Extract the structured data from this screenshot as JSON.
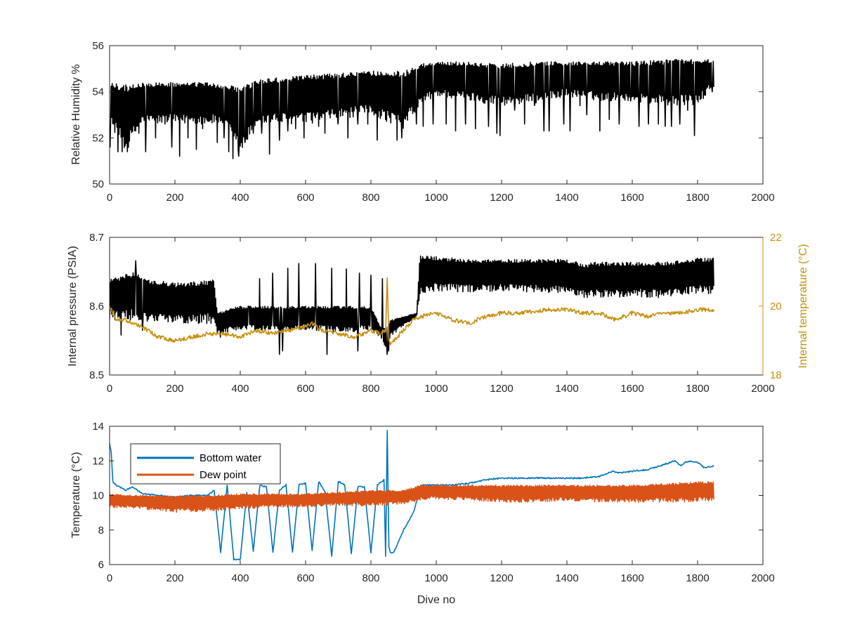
{
  "figure": {
    "background": "#ffffff"
  },
  "chart_data": [
    {
      "type": "line",
      "xlabel": "",
      "ylabel": "Relative Humidity %",
      "xlim": [
        0,
        2000
      ],
      "ylim": [
        50,
        56
      ],
      "xticks": [
        "0",
        "200",
        "400",
        "600",
        "800",
        "1000",
        "1200",
        "1400",
        "1600",
        "1800",
        "2000"
      ],
      "yticks": [
        "50",
        "52",
        "54",
        "56"
      ],
      "grid": false,
      "series": [
        {
          "color": "#000000",
          "envelope": {
            "x": [
              0,
              50,
              100,
              200,
              300,
              350,
              400,
              450,
              500,
              600,
              700,
              800,
              900,
              950,
              1000,
              1100,
              1200,
              1300,
              1400,
              1500,
              1600,
              1700,
              1800,
              1850
            ],
            "upper": [
              54.4,
              54.3,
              54.4,
              54.4,
              54.4,
              54.3,
              54.2,
              54.5,
              54.6,
              54.7,
              54.8,
              54.9,
              54.9,
              55.2,
              55.3,
              55.3,
              55.2,
              55.3,
              55.3,
              55.3,
              55.3,
              55.4,
              55.4,
              55.4
            ],
            "lower": [
              52.6,
              51.4,
              52.6,
              52.6,
              52.6,
              52.6,
              51.2,
              52.6,
              52.6,
              52.6,
              52.8,
              53.0,
              52.4,
              53.4,
              53.8,
              53.6,
              53.4,
              53.5,
              53.8,
              53.6,
              53.6,
              53.4,
              53.4,
              54.2
            ]
          },
          "dips": [
            [
              2,
              51.6
            ],
            [
              25,
              51.4
            ],
            [
              38,
              51.4
            ],
            [
              55,
              51.4
            ],
            [
              90,
              52.2
            ],
            [
              110,
              51.4
            ],
            [
              140,
              52.0
            ],
            [
              170,
              52.6
            ],
            [
              190,
              51.6
            ],
            [
              215,
              51.2
            ],
            [
              240,
              52.0
            ],
            [
              265,
              51.5
            ],
            [
              285,
              52.4
            ],
            [
              310,
              52.8
            ],
            [
              330,
              51.8
            ],
            [
              350,
              52.0
            ],
            [
              365,
              51.4
            ],
            [
              378,
              51.1
            ],
            [
              395,
              51.2
            ],
            [
              415,
              51.8
            ],
            [
              440,
              52.2
            ],
            [
              465,
              52.2
            ],
            [
              490,
              51.3
            ],
            [
              520,
              51.9
            ],
            [
              545,
              52.3
            ],
            [
              570,
              52.4
            ],
            [
              595,
              52.0
            ],
            [
              640,
              52.5
            ],
            [
              660,
              52.2
            ],
            [
              700,
              52.6
            ],
            [
              730,
              52.0
            ],
            [
              760,
              52.6
            ],
            [
              790,
              52.6
            ],
            [
              820,
              51.9
            ],
            [
              845,
              52.8
            ],
            [
              880,
              51.9
            ],
            [
              895,
              52.0
            ],
            [
              940,
              52.6
            ],
            [
              960,
              52.5
            ],
            [
              990,
              52.6
            ],
            [
              1030,
              52.6
            ],
            [
              1060,
              52.3
            ],
            [
              1090,
              52.6
            ],
            [
              1120,
              52.4
            ],
            [
              1160,
              52.5
            ],
            [
              1185,
              52.2
            ],
            [
              1195,
              52.1
            ],
            [
              1240,
              53.2
            ],
            [
              1270,
              52.6
            ],
            [
              1300,
              53.4
            ],
            [
              1330,
              52.3
            ],
            [
              1345,
              52.3
            ],
            [
              1390,
              52.6
            ],
            [
              1410,
              52.3
            ],
            [
              1440,
              53.4
            ],
            [
              1460,
              53.0
            ],
            [
              1500,
              52.3
            ],
            [
              1530,
              52.8
            ],
            [
              1560,
              52.6
            ],
            [
              1595,
              53.6
            ],
            [
              1620,
              52.5
            ],
            [
              1650,
              52.6
            ],
            [
              1680,
              52.6
            ],
            [
              1700,
              52.5
            ],
            [
              1720,
              52.5
            ],
            [
              1745,
              52.6
            ],
            [
              1770,
              53.2
            ],
            [
              1790,
              52.1
            ],
            [
              1830,
              54.2
            ],
            [
              1845,
              54.0
            ]
          ]
        }
      ]
    },
    {
      "type": "line",
      "xlabel": "",
      "ylabel": "Internal pressure (PSIA)",
      "y2label": "Internal temperature (°C)",
      "xlim": [
        0,
        2000
      ],
      "ylim": [
        8.5,
        8.7
      ],
      "y2lim": [
        18,
        22
      ],
      "xticks": [
        "0",
        "200",
        "400",
        "600",
        "800",
        "1000",
        "1200",
        "1400",
        "1600",
        "1800",
        "2000"
      ],
      "yticks": [
        "8.5",
        "8.6",
        "8.7"
      ],
      "y2ticks": [
        "18",
        "20",
        "22"
      ],
      "y2color": "#c5900f",
      "grid": false,
      "series": [
        {
          "axis": "left",
          "color": "#000000",
          "envelope": {
            "x": [
              0,
              80,
              100,
              200,
              320,
              330,
              360,
              400,
              500,
              600,
              700,
              800,
              830,
              850,
              860,
              900,
              940,
              950,
              1000,
              1100,
              1200,
              1300,
              1400,
              1460,
              1470,
              1500,
              1600,
              1700,
              1800,
              1850
            ],
            "upper": [
              8.64,
              8.65,
              8.64,
              8.634,
              8.638,
              8.59,
              8.596,
              8.6,
              8.6,
              8.6,
              8.6,
              8.6,
              8.57,
              8.57,
              8.58,
              8.585,
              8.59,
              8.674,
              8.672,
              8.668,
              8.668,
              8.668,
              8.668,
              8.66,
              8.664,
              8.664,
              8.664,
              8.664,
              8.67,
              8.67
            ],
            "lower": [
              8.58,
              8.58,
              8.578,
              8.574,
              8.575,
              8.56,
              8.562,
              8.566,
              8.564,
              8.566,
              8.562,
              8.564,
              8.555,
              8.535,
              8.555,
              8.572,
              8.583,
              8.615,
              8.622,
              8.62,
              8.622,
              8.62,
              8.62,
              8.612,
              8.612,
              8.612,
              8.614,
              8.612,
              8.618,
              8.618
            ]
          },
          "peaks": [
            [
              80,
              8.666
            ],
            [
              315,
              8.638
            ],
            [
              350,
              8.59
            ],
            [
              380,
              8.596
            ],
            [
              425,
              8.6
            ],
            [
              460,
              8.64
            ],
            [
              500,
              8.648
            ],
            [
              545,
              8.655
            ],
            [
              580,
              8.662
            ],
            [
              630,
              8.662
            ],
            [
              680,
              8.655
            ],
            [
              725,
              8.654
            ],
            [
              765,
              8.648
            ],
            [
              800,
              8.645
            ],
            [
              835,
              8.64
            ]
          ],
          "spikes_down": [
            [
              35,
              8.558
            ],
            [
              100,
              8.565
            ],
            [
              340,
              8.555
            ],
            [
              520,
              8.53
            ],
            [
              530,
              8.535
            ],
            [
              665,
              8.53
            ],
            [
              760,
              8.535
            ],
            [
              850,
              8.53
            ],
            [
              855,
              8.535
            ]
          ]
        },
        {
          "axis": "right",
          "color": "#c5900f",
          "x": [
            0,
            20,
            50,
            100,
            150,
            200,
            250,
            300,
            350,
            400,
            450,
            500,
            550,
            600,
            620,
            650,
            700,
            750,
            800,
            830,
            845,
            850,
            855,
            860,
            870,
            900,
            930,
            950,
            1000,
            1050,
            1100,
            1150,
            1200,
            1250,
            1300,
            1350,
            1400,
            1450,
            1500,
            1550,
            1600,
            1650,
            1700,
            1750,
            1800,
            1850
          ],
          "y": [
            20.0,
            19.6,
            19.6,
            19.4,
            19.1,
            19.0,
            19.1,
            19.2,
            19.2,
            19.1,
            19.3,
            19.2,
            19.3,
            19.4,
            19.5,
            19.3,
            19.2,
            19.1,
            19.3,
            19.2,
            19.3,
            20.8,
            19.0,
            18.9,
            19.0,
            19.3,
            19.6,
            19.7,
            19.8,
            19.6,
            19.5,
            19.7,
            19.8,
            19.8,
            19.85,
            19.9,
            19.9,
            19.8,
            19.8,
            19.6,
            19.8,
            19.7,
            19.8,
            19.8,
            19.9,
            19.9
          ]
        }
      ]
    },
    {
      "type": "line",
      "xlabel": "Dive no",
      "ylabel": "Temperature (°C)",
      "xlim": [
        0,
        2000
      ],
      "ylim": [
        6,
        14
      ],
      "xticks": [
        "0",
        "200",
        "400",
        "600",
        "800",
        "1000",
        "1200",
        "1400",
        "1600",
        "1800",
        "2000"
      ],
      "yticks": [
        "6",
        "8",
        "10",
        "12",
        "14"
      ],
      "grid": false,
      "legend": "top-left",
      "series": [
        {
          "name": "Bottom water",
          "color": "#0072bd",
          "x": [
            0,
            5,
            10,
            20,
            50,
            70,
            100,
            150,
            200,
            250,
            300,
            320,
            340,
            360,
            380,
            400,
            420,
            440,
            460,
            480,
            500,
            520,
            540,
            560,
            580,
            600,
            620,
            640,
            660,
            680,
            700,
            720,
            740,
            760,
            780,
            800,
            820,
            840,
            845,
            850,
            855,
            860,
            870,
            900,
            930,
            950,
            960,
            1000,
            1050,
            1100,
            1150,
            1200,
            1250,
            1300,
            1350,
            1400,
            1450,
            1500,
            1540,
            1560,
            1600,
            1650,
            1700,
            1730,
            1750,
            1760,
            1780,
            1800,
            1820,
            1850
          ],
          "y": [
            13.0,
            12.5,
            10.8,
            10.6,
            10.3,
            10.5,
            10.1,
            10.0,
            9.9,
            10.0,
            10.0,
            10.3,
            6.7,
            10.6,
            6.3,
            6.3,
            10.2,
            6.8,
            10.6,
            10.5,
            6.7,
            10.3,
            10.6,
            6.7,
            10.6,
            10.7,
            6.8,
            10.8,
            10.2,
            6.5,
            10.8,
            10.6,
            6.6,
            10.5,
            10.5,
            6.7,
            10.6,
            10.9,
            6.5,
            13.8,
            7.0,
            6.7,
            6.7,
            8.0,
            9.0,
            10.3,
            10.6,
            10.6,
            10.6,
            10.7,
            10.9,
            11.0,
            11.0,
            11.0,
            11.0,
            11.0,
            11.0,
            11.1,
            11.4,
            11.3,
            11.4,
            11.5,
            11.8,
            12.0,
            11.7,
            11.9,
            12.0,
            11.9,
            11.6,
            11.7
          ]
        },
        {
          "name": "Dew point",
          "color": "#d95319",
          "envelope": {
            "x": [
              0,
              100,
              200,
              300,
              400,
              500,
              600,
              700,
              800,
              900,
              950,
              1000,
              1100,
              1200,
              1300,
              1400,
              1500,
              1600,
              1700,
              1800,
              1850
            ],
            "upper": [
              10.1,
              10.0,
              10.0,
              10.0,
              10.1,
              10.1,
              10.1,
              10.2,
              10.3,
              10.3,
              10.6,
              10.6,
              10.6,
              10.6,
              10.6,
              10.6,
              10.6,
              10.6,
              10.7,
              10.8,
              10.8
            ],
            "lower": [
              9.3,
              9.2,
              9.0,
              9.1,
              9.2,
              9.3,
              9.3,
              9.4,
              9.4,
              9.5,
              9.7,
              9.8,
              9.7,
              9.6,
              9.6,
              9.7,
              9.6,
              9.6,
              9.6,
              9.6,
              9.7
            ]
          }
        }
      ]
    }
  ]
}
